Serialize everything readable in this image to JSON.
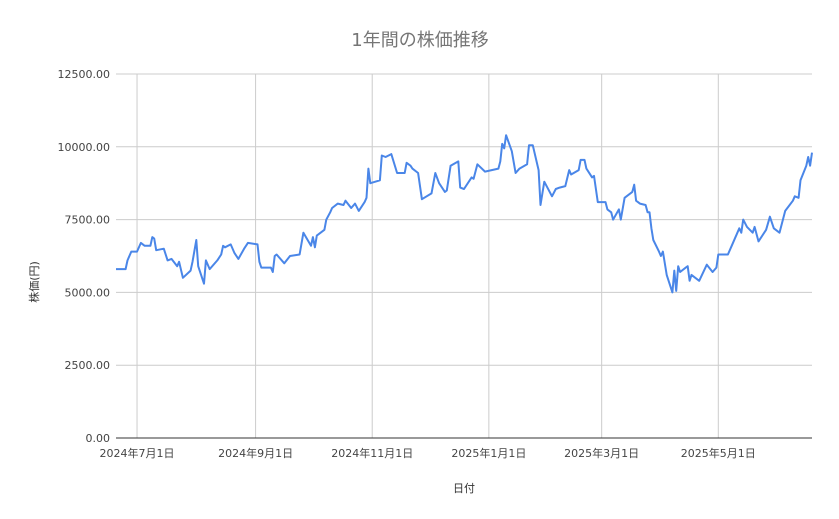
{
  "chart_data": {
    "type": "line",
    "title": "1年間の株価推移",
    "xlabel": "日付",
    "ylabel": "株価(円)",
    "xlim": [
      "2024-06-20",
      "2025-06-19"
    ],
    "ylim": [
      0,
      12500
    ],
    "yticks": [
      0,
      2500,
      5000,
      7500,
      10000,
      12500
    ],
    "ytick_labels": [
      "0.00",
      "2500.00",
      "5000.00",
      "7500.00",
      "10000.00",
      "12500.00"
    ],
    "xticks": [
      "2024-07-01",
      "2024-09-01",
      "2024-11-01",
      "2025-01-01",
      "2025-03-01",
      "2025-05-01"
    ],
    "xtick_labels": [
      "2024年7月1日",
      "2024年9月1日",
      "2024年11月1日",
      "2025年1月1日",
      "2025年3月1日",
      "2025年5月1日"
    ],
    "grid": true,
    "legend": "none",
    "colors": {
      "line": "#4a86e8",
      "grid": "#cccccc",
      "axis": "#333333",
      "text": "#757575"
    },
    "series": [
      {
        "points": [
          [
            "2024-06-20",
            5800
          ],
          [
            "2024-06-25",
            5800
          ],
          [
            "2024-06-26",
            6100
          ],
          [
            "2024-06-28",
            6400
          ],
          [
            "2024-07-01",
            6400
          ],
          [
            "2024-07-03",
            6700
          ],
          [
            "2024-07-05",
            6600
          ],
          [
            "2024-07-08",
            6600
          ],
          [
            "2024-07-09",
            6900
          ],
          [
            "2024-07-10",
            6850
          ],
          [
            "2024-07-11",
            6450
          ],
          [
            "2024-07-15",
            6500
          ],
          [
            "2024-07-17",
            6100
          ],
          [
            "2024-07-19",
            6150
          ],
          [
            "2024-07-22",
            5900
          ],
          [
            "2024-07-23",
            6050
          ],
          [
            "2024-07-25",
            5500
          ],
          [
            "2024-07-29",
            5750
          ],
          [
            "2024-07-30",
            6050
          ],
          [
            "2024-08-01",
            6800
          ],
          [
            "2024-08-02",
            5900
          ],
          [
            "2024-08-05",
            5300
          ],
          [
            "2024-08-06",
            6100
          ],
          [
            "2024-08-08",
            5800
          ],
          [
            "2024-08-12",
            6100
          ],
          [
            "2024-08-14",
            6300
          ],
          [
            "2024-08-15",
            6600
          ],
          [
            "2024-08-16",
            6550
          ],
          [
            "2024-08-19",
            6650
          ],
          [
            "2024-08-21",
            6350
          ],
          [
            "2024-08-23",
            6150
          ],
          [
            "2024-08-26",
            6500
          ],
          [
            "2024-08-28",
            6700
          ],
          [
            "2024-09-02",
            6650
          ],
          [
            "2024-09-03",
            6050
          ],
          [
            "2024-09-04",
            5850
          ],
          [
            "2024-09-09",
            5850
          ],
          [
            "2024-09-10",
            5700
          ],
          [
            "2024-09-11",
            6250
          ],
          [
            "2024-09-12",
            6300
          ],
          [
            "2024-09-16",
            6000
          ],
          [
            "2024-09-19",
            6250
          ],
          [
            "2024-09-24",
            6300
          ],
          [
            "2024-09-26",
            7050
          ],
          [
            "2024-09-30",
            6600
          ],
          [
            "2024-10-01",
            6900
          ],
          [
            "2024-10-02",
            6550
          ],
          [
            "2024-10-03",
            6950
          ],
          [
            "2024-10-07",
            7150
          ],
          [
            "2024-10-08",
            7500
          ],
          [
            "2024-10-10",
            7750
          ],
          [
            "2024-10-11",
            7900
          ],
          [
            "2024-10-14",
            8050
          ],
          [
            "2024-10-17",
            8000
          ],
          [
            "2024-10-18",
            8150
          ],
          [
            "2024-10-21",
            7900
          ],
          [
            "2024-10-23",
            8050
          ],
          [
            "2024-10-25",
            7800
          ],
          [
            "2024-10-28",
            8100
          ],
          [
            "2024-10-29",
            8250
          ],
          [
            "2024-10-30",
            9250
          ],
          [
            "2024-10-31",
            8750
          ],
          [
            "2024-11-05",
            8850
          ],
          [
            "2024-11-06",
            9700
          ],
          [
            "2024-11-08",
            9650
          ],
          [
            "2024-11-11",
            9750
          ],
          [
            "2024-11-14",
            9100
          ],
          [
            "2024-11-18",
            9100
          ],
          [
            "2024-11-19",
            9450
          ],
          [
            "2024-11-21",
            9350
          ],
          [
            "2024-11-22",
            9250
          ],
          [
            "2024-11-25",
            9100
          ],
          [
            "2024-11-27",
            8200
          ],
          [
            "2024-12-02",
            8400
          ],
          [
            "2024-12-04",
            9100
          ],
          [
            "2024-12-06",
            8750
          ],
          [
            "2024-12-09",
            8450
          ],
          [
            "2024-12-10",
            8500
          ],
          [
            "2024-12-12",
            9350
          ],
          [
            "2024-12-16",
            9500
          ],
          [
            "2024-12-17",
            8600
          ],
          [
            "2024-12-19",
            8550
          ],
          [
            "2024-12-23",
            8950
          ],
          [
            "2024-12-24",
            8900
          ],
          [
            "2024-12-26",
            9400
          ],
          [
            "2024-12-30",
            9150
          ],
          [
            "2025-01-06",
            9250
          ],
          [
            "2025-01-07",
            9500
          ],
          [
            "2025-01-08",
            10100
          ],
          [
            "2025-01-09",
            9950
          ],
          [
            "2025-01-10",
            10400
          ],
          [
            "2025-01-13",
            9850
          ],
          [
            "2025-01-15",
            9100
          ],
          [
            "2025-01-17",
            9250
          ],
          [
            "2025-01-21",
            9400
          ],
          [
            "2025-01-22",
            10050
          ],
          [
            "2025-01-24",
            10050
          ],
          [
            "2025-01-27",
            9200
          ],
          [
            "2025-01-28",
            8000
          ],
          [
            "2025-01-30",
            8800
          ],
          [
            "2025-02-03",
            8300
          ],
          [
            "2025-02-05",
            8550
          ],
          [
            "2025-02-07",
            8600
          ],
          [
            "2025-02-10",
            8650
          ],
          [
            "2025-02-12",
            9200
          ],
          [
            "2025-02-13",
            9050
          ],
          [
            "2025-02-17",
            9200
          ],
          [
            "2025-02-18",
            9550
          ],
          [
            "2025-02-20",
            9550
          ],
          [
            "2025-02-21",
            9250
          ],
          [
            "2025-02-24",
            8950
          ],
          [
            "2025-02-25",
            9000
          ],
          [
            "2025-02-27",
            8100
          ],
          [
            "2025-03-03",
            8100
          ],
          [
            "2025-03-04",
            7850
          ],
          [
            "2025-03-06",
            7750
          ],
          [
            "2025-03-07",
            7500
          ],
          [
            "2025-03-10",
            7850
          ],
          [
            "2025-03-11",
            7500
          ],
          [
            "2025-03-13",
            8250
          ],
          [
            "2025-03-17",
            8450
          ],
          [
            "2025-03-18",
            8700
          ],
          [
            "2025-03-19",
            8150
          ],
          [
            "2025-03-21",
            8050
          ],
          [
            "2025-03-24",
            8000
          ],
          [
            "2025-03-25",
            7750
          ],
          [
            "2025-03-26",
            7750
          ],
          [
            "2025-03-27",
            7200
          ],
          [
            "2025-03-28",
            6800
          ],
          [
            "2025-03-31",
            6400
          ],
          [
            "2025-04-01",
            6250
          ],
          [
            "2025-04-02",
            6400
          ],
          [
            "2025-04-04",
            5600
          ],
          [
            "2025-04-07",
            5000
          ],
          [
            "2025-04-08",
            5750
          ],
          [
            "2025-04-09",
            5050
          ],
          [
            "2025-04-10",
            5900
          ],
          [
            "2025-04-11",
            5700
          ],
          [
            "2025-04-14",
            5850
          ],
          [
            "2025-04-15",
            5900
          ],
          [
            "2025-04-16",
            5400
          ],
          [
            "2025-04-17",
            5600
          ],
          [
            "2025-04-21",
            5400
          ],
          [
            "2025-04-25",
            5950
          ],
          [
            "2025-04-28",
            5700
          ],
          [
            "2025-04-30",
            5850
          ],
          [
            "2025-05-01",
            6300
          ],
          [
            "2025-05-06",
            6300
          ],
          [
            "2025-05-08",
            6600
          ],
          [
            "2025-05-12",
            7200
          ],
          [
            "2025-05-13",
            7050
          ],
          [
            "2025-05-14",
            7500
          ],
          [
            "2025-05-16",
            7250
          ],
          [
            "2025-05-19",
            7050
          ],
          [
            "2025-05-20",
            7250
          ],
          [
            "2025-05-22",
            6750
          ],
          [
            "2025-05-26",
            7150
          ],
          [
            "2025-05-28",
            7600
          ],
          [
            "2025-05-30",
            7200
          ],
          [
            "2025-06-02",
            7050
          ],
          [
            "2025-06-05",
            7800
          ],
          [
            "2025-06-09",
            8150
          ],
          [
            "2025-06-10",
            8300
          ],
          [
            "2025-06-12",
            8250
          ],
          [
            "2025-06-13",
            8850
          ],
          [
            "2025-06-16",
            9350
          ],
          [
            "2025-06-17",
            9650
          ],
          [
            "2025-06-18",
            9350
          ],
          [
            "2025-06-19",
            9800
          ]
        ]
      }
    ]
  }
}
